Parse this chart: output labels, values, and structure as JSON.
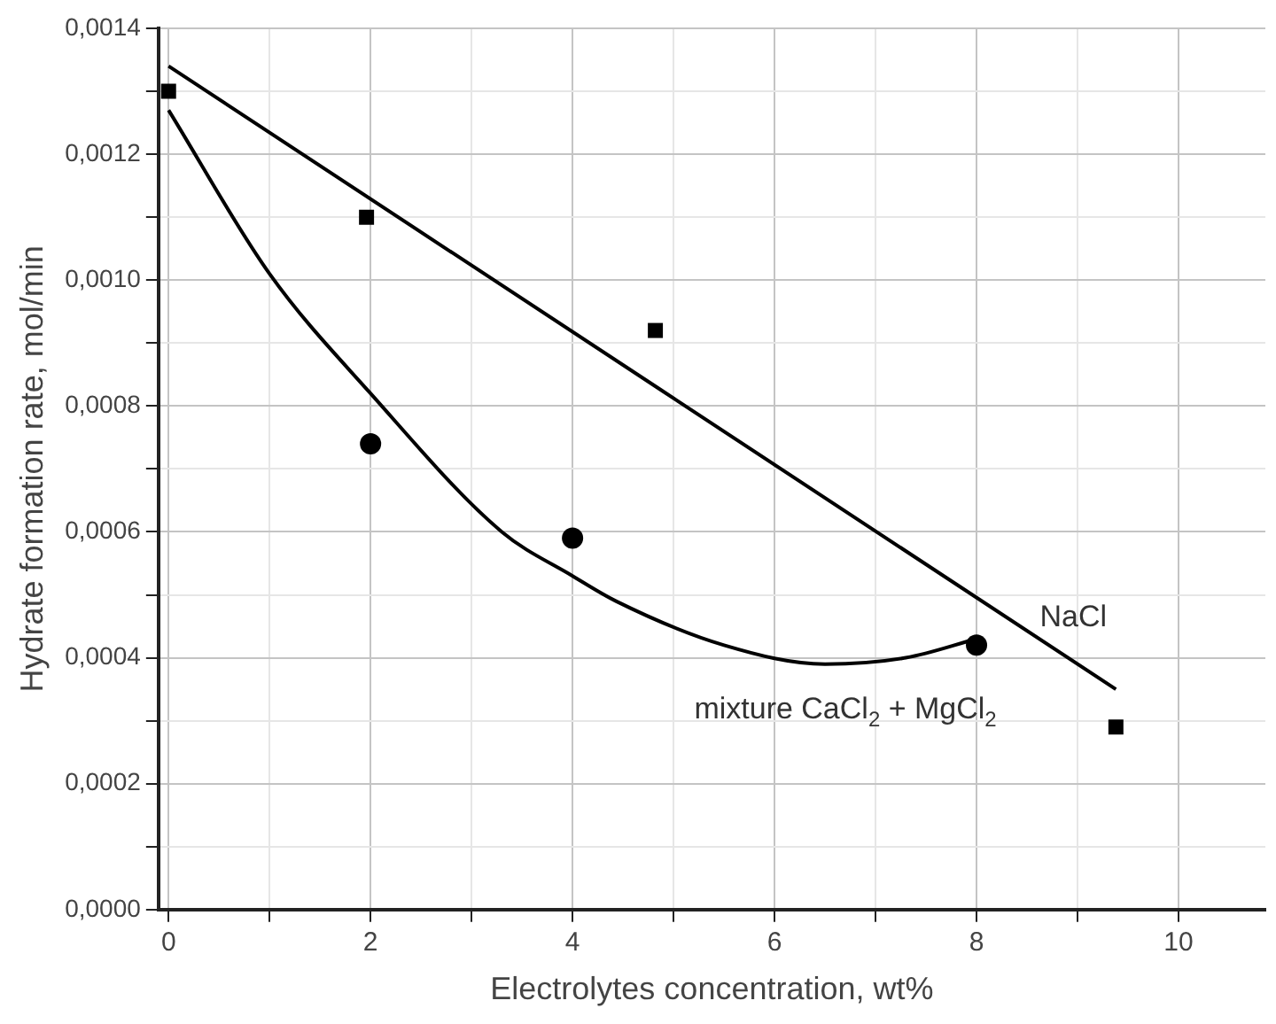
{
  "chart_data": {
    "type": "scatter",
    "xlabel": "Electrolytes concentration, wt%",
    "ylabel": "Hydrate formation rate, mol/min",
    "xlim": [
      -0.1,
      10.86
    ],
    "ylim": [
      0,
      0.0014
    ],
    "xticks": [
      0,
      {
        "value": 1,
        "label": null
      },
      2,
      {
        "value": 3,
        "label": null
      },
      4,
      {
        "value": 5,
        "label": null
      },
      6,
      {
        "value": 7,
        "label": null
      },
      8,
      {
        "value": 9,
        "label": null
      },
      10
    ],
    "yticks": [
      {
        "value": 0,
        "label": "0,0000"
      },
      {
        "value": 0.0001,
        "label": null
      },
      {
        "value": 0.0002,
        "label": "0,0002"
      },
      {
        "value": 0.0003,
        "label": null
      },
      {
        "value": 0.0004,
        "label": "0,0004"
      },
      {
        "value": 0.0005,
        "label": null
      },
      {
        "value": 0.0006,
        "label": "0,0006"
      },
      {
        "value": 0.0007,
        "label": null
      },
      {
        "value": 0.0008,
        "label": "0,0008"
      },
      {
        "value": 0.0009,
        "label": null
      },
      {
        "value": 0.001,
        "label": "0,0010"
      },
      {
        "value": 0.0011,
        "label": null
      },
      {
        "value": 0.0012,
        "label": "0,0012"
      },
      {
        "value": 0.0013,
        "label": null
      },
      {
        "value": 0.0014,
        "label": "0,0014"
      }
    ],
    "grid": true,
    "legend": false,
    "series": [
      {
        "marker": "square",
        "color": "#000000",
        "x": [
          0,
          1.96,
          4.82,
          9.38
        ],
        "values": [
          0.0013,
          0.0011,
          0.00092,
          0.00029
        ]
      },
      {
        "marker": "circle",
        "color": "#000000",
        "x": [
          2,
          4,
          8
        ],
        "values": [
          0.00074,
          0.00059,
          0.00042
        ]
      },
      {
        "type": "line",
        "name": "NaCl",
        "marker": "none",
        "color": "#000000",
        "x": [
          0,
          9.38
        ],
        "values": [
          0.00134,
          0.00035
        ]
      },
      {
        "type": "line",
        "name": "mixture CaCl$_{2}$ + MgCl$_{2}$",
        "marker": "none",
        "color": "#000000",
        "x": [
          0,
          1,
          2,
          3.3,
          4,
          4.43,
          5.5,
          6.5,
          7.3,
          8
        ],
        "values": [
          0.00127,
          0.00101,
          0.00082,
          0.0006,
          0.00053,
          0.00049,
          0.00042,
          0.00039,
          0.0004,
          0.00043
        ]
      }
    ]
  }
}
